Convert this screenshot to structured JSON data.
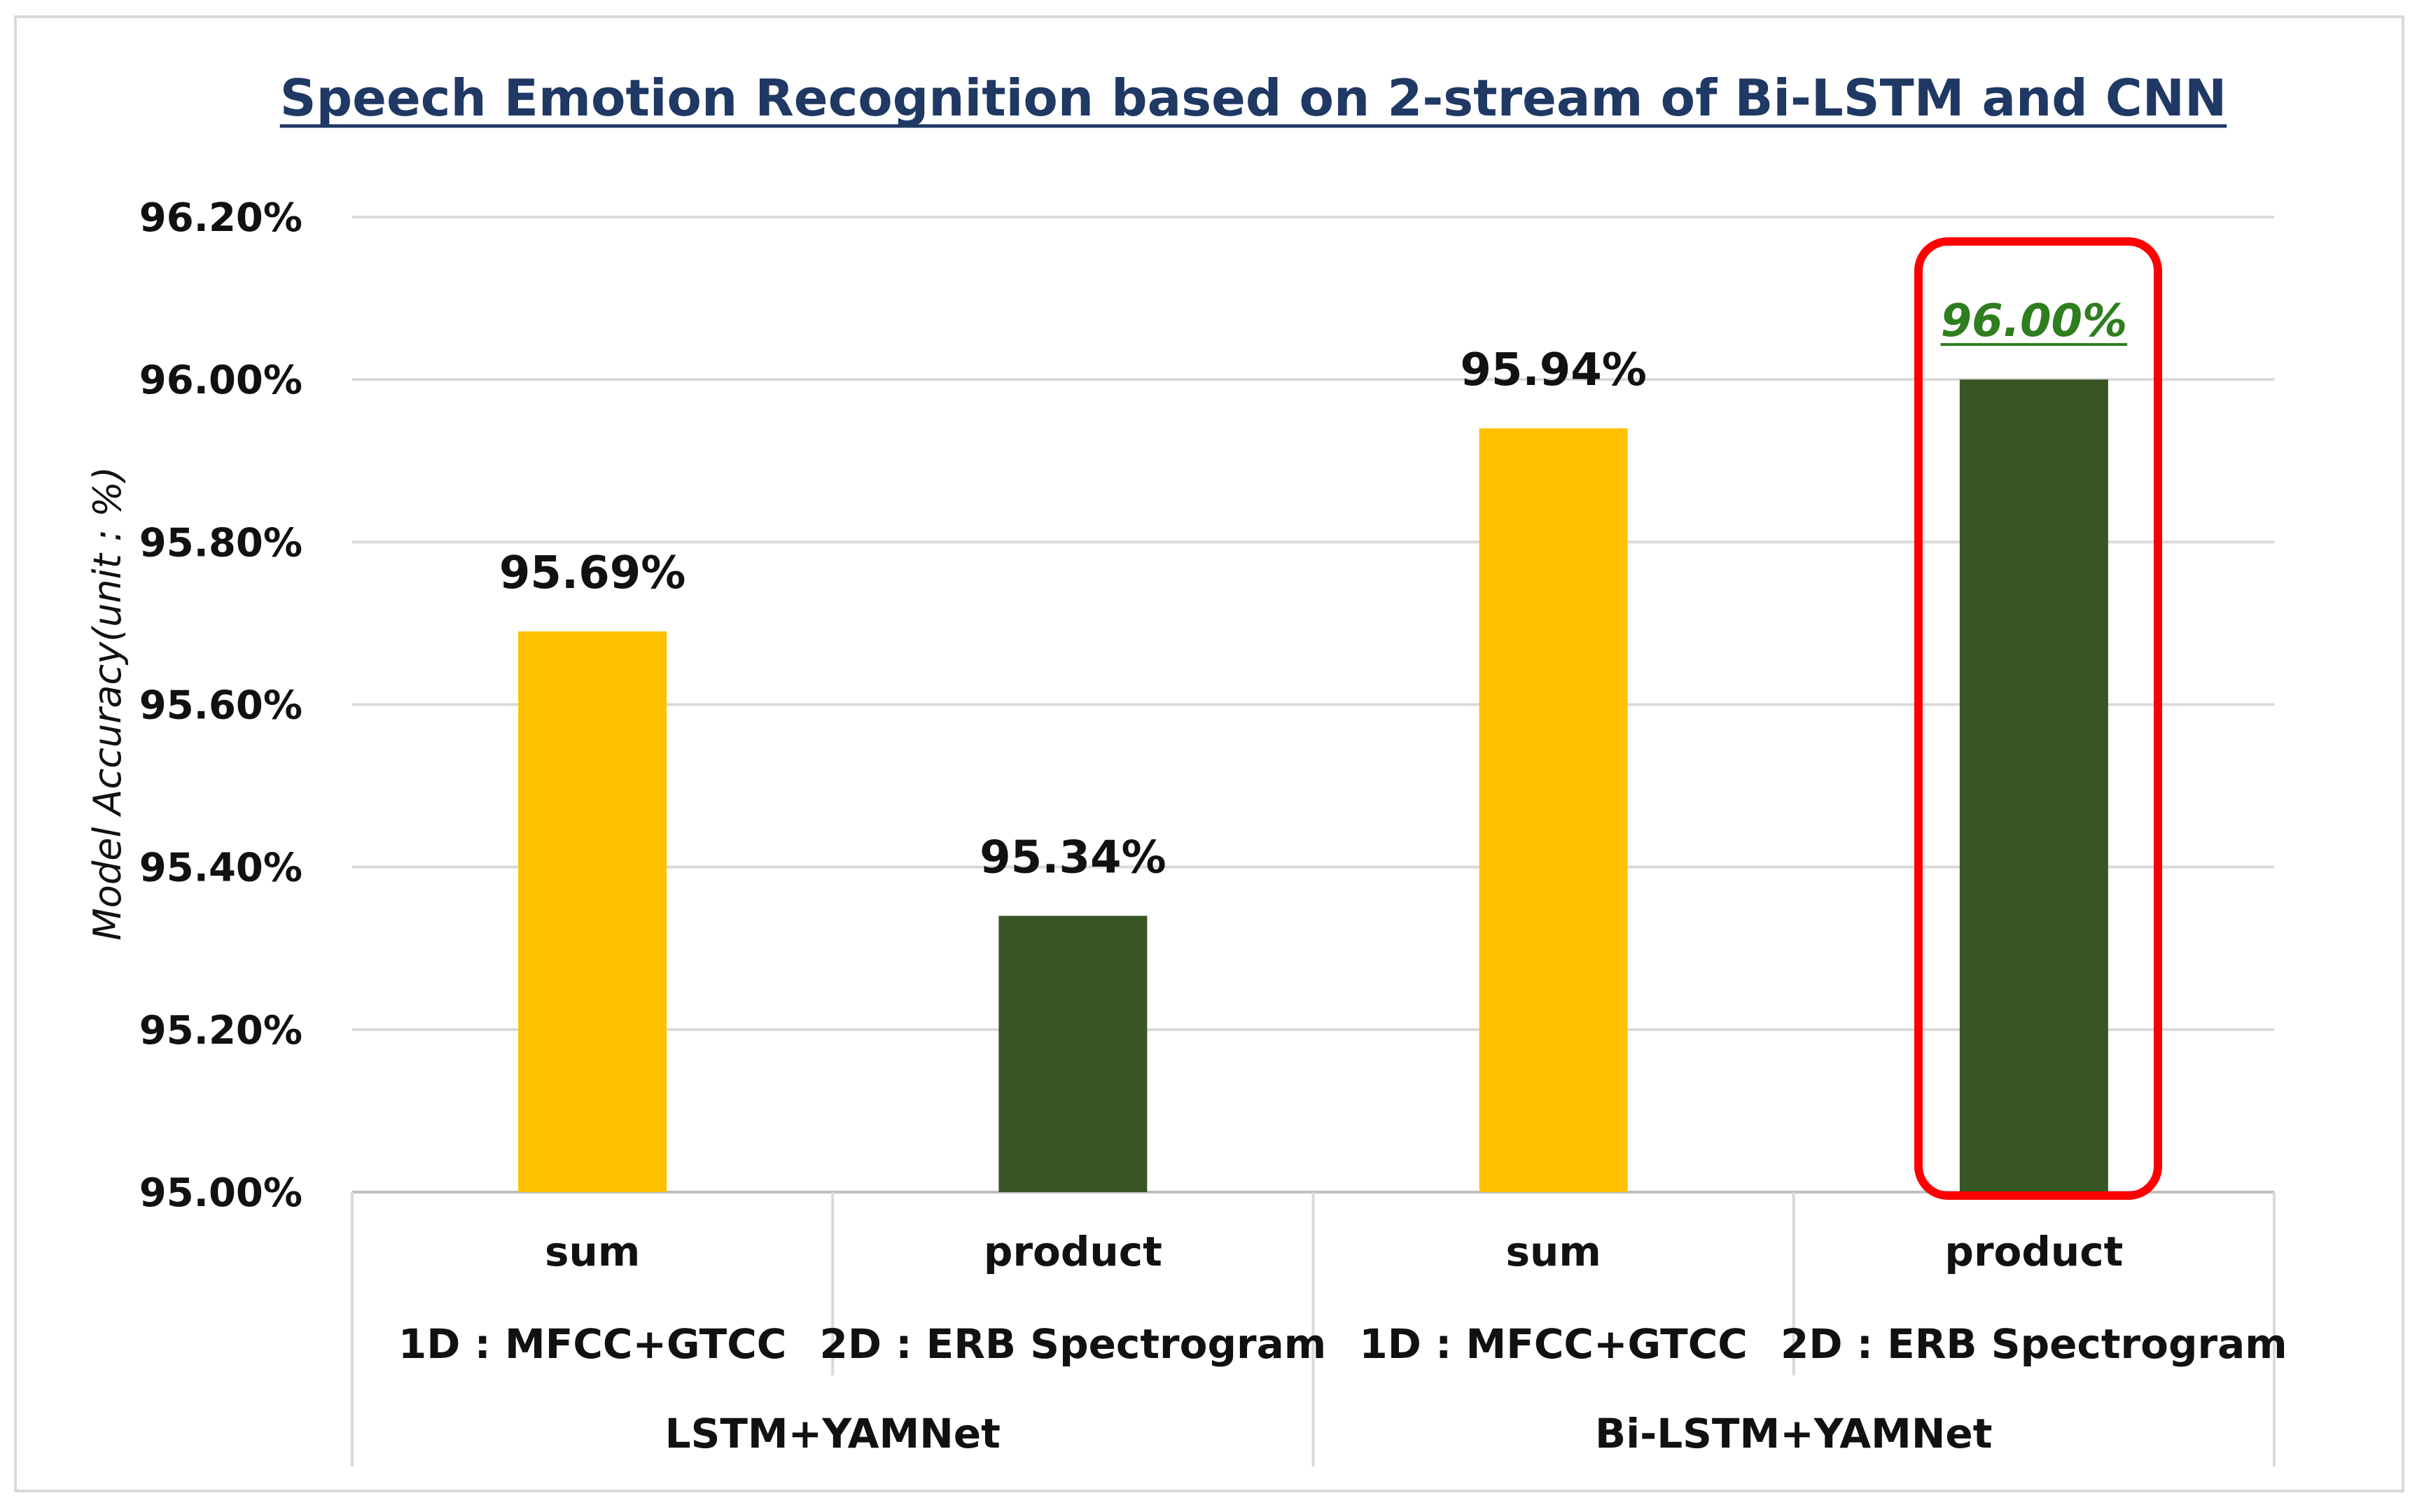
{
  "chart_data": {
    "type": "bar",
    "title": "Speech  Emotion Recognition  based on 2-stream of Bi-LSTM and CNN",
    "ylabel": "Model Accuracy(unit : %)",
    "xlabel": "",
    "ylim": [
      95.0,
      96.2
    ],
    "yticks": [
      95.0,
      95.2,
      95.4,
      95.6,
      95.8,
      96.0,
      96.2
    ],
    "ytick_labels": [
      "95.00%",
      "95.20%",
      "95.40%",
      "95.60%",
      "95.80%",
      "96.00%",
      "96.20%"
    ],
    "grid": true,
    "categories": [
      {
        "fusion": "sum",
        "feature": "1D : MFCC+GTCC",
        "group": "LSTM+YAMNet"
      },
      {
        "fusion": "product",
        "feature": "2D : ERB Spectrogram",
        "group": "LSTM+YAMNet"
      },
      {
        "fusion": "sum",
        "feature": "1D : MFCC+GTCC",
        "group": "Bi-LSTM+YAMNet"
      },
      {
        "fusion": "product",
        "feature": "2D : ERB Spectrogram",
        "group": "Bi-LSTM+YAMNet"
      }
    ],
    "groups": [
      "LSTM+YAMNet",
      "Bi-LSTM+YAMNet"
    ],
    "values": [
      95.69,
      95.34,
      95.94,
      96.0
    ],
    "value_labels": [
      "95.69%",
      "95.34%",
      "95.94%",
      "96.00%"
    ],
    "bar_colors": [
      "#ffc000",
      "#375623",
      "#ffc000",
      "#375623"
    ],
    "highlight_index": 3,
    "highlight_color": "#ff0000"
  }
}
